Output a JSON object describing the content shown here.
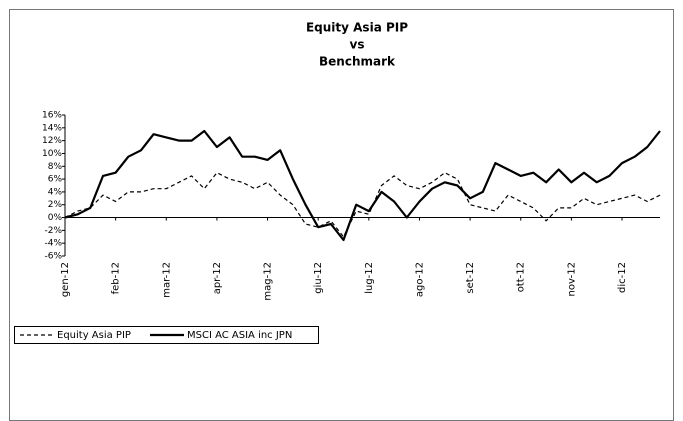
{
  "chart_data": {
    "type": "line",
    "title": [
      "Equity Asia PIP",
      "vs",
      "Benchmark"
    ],
    "categories": [
      "gen-12",
      null,
      null,
      null,
      "feb-12",
      null,
      null,
      null,
      "mar-12",
      null,
      null,
      null,
      "apr-12",
      null,
      null,
      null,
      "mag-12",
      null,
      null,
      null,
      "giu-12",
      null,
      null,
      null,
      "lug-12",
      null,
      null,
      null,
      "ago-12",
      null,
      null,
      null,
      "set-12",
      null,
      null,
      null,
      "ott-12",
      null,
      null,
      null,
      "nov-12",
      null,
      null,
      null,
      "dic-12",
      null,
      null,
      null
    ],
    "series": [
      {
        "name": "Equity Asia PIP",
        "color": "#000000",
        "style": "dashed",
        "values": [
          0,
          1,
          1.5,
          3.5,
          2.5,
          4,
          4,
          4.5,
          4.5,
          5.5,
          6.5,
          4.5,
          7,
          6,
          5.5,
          4.5,
          5.5,
          3.5,
          2,
          -1,
          -1.5,
          -0.5,
          -3,
          1,
          0.5,
          5,
          6.5,
          5,
          4.5,
          5.5,
          7,
          6,
          2,
          1.5,
          1,
          3.5,
          2.5,
          1.5,
          -0.5,
          1.5,
          1.5,
          3,
          2,
          2.5,
          3,
          3.5,
          2.5,
          3.5
        ]
      },
      {
        "name": "MSCI AC ASIA inc JPN",
        "color": "#000000",
        "style": "solid",
        "values": [
          0,
          0.5,
          1.5,
          6.5,
          7,
          9.5,
          10.5,
          13,
          12.5,
          12,
          12,
          13.5,
          11,
          12.5,
          9.5,
          9.5,
          9,
          10.5,
          6,
          2,
          -1.5,
          -1,
          -3.5,
          2,
          1,
          4,
          2.5,
          0,
          2.5,
          4.5,
          5.5,
          5,
          3,
          4,
          8.5,
          7.5,
          6.5,
          7,
          5.5,
          7.5,
          5.5,
          7,
          5.5,
          6.5,
          8.5,
          9.5,
          11,
          13.5
        ]
      }
    ],
    "ylim": [
      -6,
      16
    ],
    "yticks": [
      {
        "value": -6,
        "label": "-6%"
      },
      {
        "value": -4,
        "label": "-4%"
      },
      {
        "value": -2,
        "label": "-2%"
      },
      {
        "value": 0,
        "label": "0%"
      },
      {
        "value": 2,
        "label": "2%"
      },
      {
        "value": 4,
        "label": "4%"
      },
      {
        "value": 6,
        "label": "6%"
      },
      {
        "value": 8,
        "label": "8%"
      },
      {
        "value": 10,
        "label": "10%"
      },
      {
        "value": 12,
        "label": "12%"
      },
      {
        "value": 14,
        "label": "14%"
      },
      {
        "value": 16,
        "label": "16%"
      }
    ]
  }
}
